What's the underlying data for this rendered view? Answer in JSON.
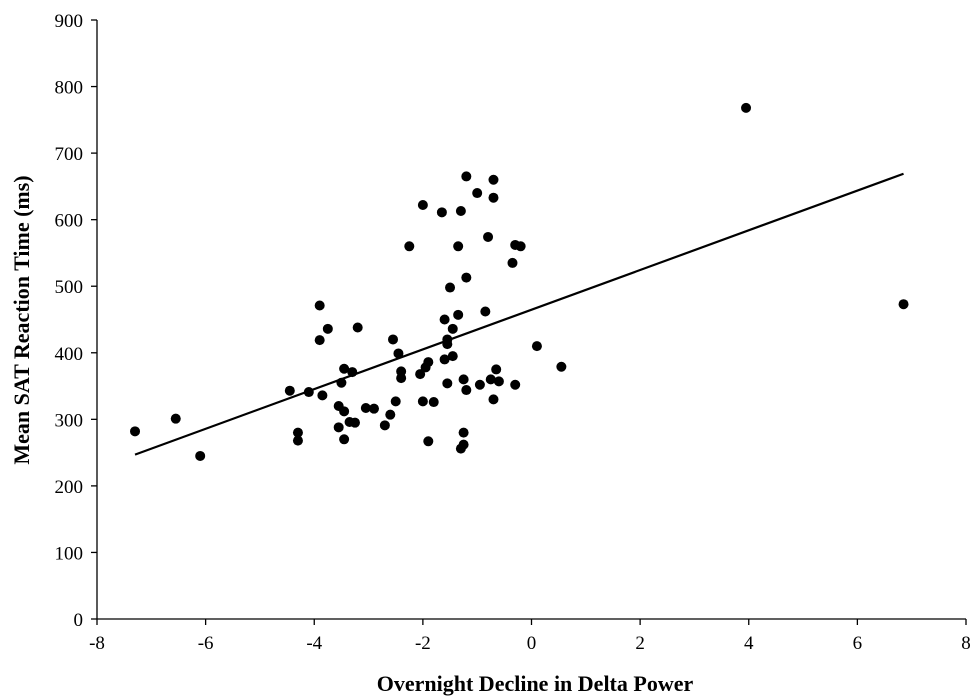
{
  "chart_data": {
    "type": "scatter",
    "title": "",
    "xlabel": "Overnight Decline in Delta Power",
    "ylabel": "Mean SAT Reaction Time (ms)",
    "xlim": [
      -8,
      8
    ],
    "ylim": [
      0,
      900
    ],
    "xticks": [
      -8,
      -6,
      -4,
      -2,
      0,
      2,
      4,
      6,
      8
    ],
    "yticks": [
      0,
      100,
      200,
      300,
      400,
      500,
      600,
      700,
      800,
      900
    ],
    "grid": false,
    "legend": "none",
    "point_color": "#000000",
    "series": [
      {
        "points": [
          {
            "x": -7.3,
            "y": 282
          },
          {
            "x": -6.55,
            "y": 301
          },
          {
            "x": -6.1,
            "y": 245
          },
          {
            "x": -4.45,
            "y": 343
          },
          {
            "x": -4.3,
            "y": 280
          },
          {
            "x": -4.3,
            "y": 268
          },
          {
            "x": -4.1,
            "y": 341
          },
          {
            "x": -3.9,
            "y": 471
          },
          {
            "x": -3.9,
            "y": 419
          },
          {
            "x": -3.85,
            "y": 336
          },
          {
            "x": -3.75,
            "y": 436
          },
          {
            "x": -3.55,
            "y": 320
          },
          {
            "x": -3.55,
            "y": 288
          },
          {
            "x": -3.5,
            "y": 355
          },
          {
            "x": -3.45,
            "y": 376
          },
          {
            "x": -3.45,
            "y": 312
          },
          {
            "x": -3.45,
            "y": 270
          },
          {
            "x": -3.35,
            "y": 296
          },
          {
            "x": -3.3,
            "y": 371
          },
          {
            "x": -3.25,
            "y": 295
          },
          {
            "x": -3.2,
            "y": 438
          },
          {
            "x": -3.05,
            "y": 317
          },
          {
            "x": -2.9,
            "y": 316
          },
          {
            "x": -2.7,
            "y": 291
          },
          {
            "x": -2.6,
            "y": 307
          },
          {
            "x": -2.55,
            "y": 420
          },
          {
            "x": -2.5,
            "y": 327
          },
          {
            "x": -2.45,
            "y": 399
          },
          {
            "x": -2.4,
            "y": 372
          },
          {
            "x": -2.4,
            "y": 362
          },
          {
            "x": -2.25,
            "y": 560
          },
          {
            "x": -2.05,
            "y": 368
          },
          {
            "x": -2.0,
            "y": 622
          },
          {
            "x": -2.0,
            "y": 327
          },
          {
            "x": -1.95,
            "y": 378
          },
          {
            "x": -1.9,
            "y": 386
          },
          {
            "x": -1.9,
            "y": 267
          },
          {
            "x": -1.8,
            "y": 326
          },
          {
            "x": -1.65,
            "y": 611
          },
          {
            "x": -1.6,
            "y": 450
          },
          {
            "x": -1.6,
            "y": 390
          },
          {
            "x": -1.55,
            "y": 420
          },
          {
            "x": -1.55,
            "y": 413
          },
          {
            "x": -1.55,
            "y": 354
          },
          {
            "x": -1.5,
            "y": 498
          },
          {
            "x": -1.45,
            "y": 436
          },
          {
            "x": -1.45,
            "y": 395
          },
          {
            "x": -1.35,
            "y": 560
          },
          {
            "x": -1.35,
            "y": 457
          },
          {
            "x": -1.3,
            "y": 613
          },
          {
            "x": -1.3,
            "y": 256
          },
          {
            "x": -1.25,
            "y": 360
          },
          {
            "x": -1.25,
            "y": 280
          },
          {
            "x": -1.25,
            "y": 262
          },
          {
            "x": -1.2,
            "y": 665
          },
          {
            "x": -1.2,
            "y": 513
          },
          {
            "x": -1.2,
            "y": 344
          },
          {
            "x": -1.0,
            "y": 640
          },
          {
            "x": -0.95,
            "y": 352
          },
          {
            "x": -0.85,
            "y": 462
          },
          {
            "x": -0.8,
            "y": 574
          },
          {
            "x": -0.75,
            "y": 360
          },
          {
            "x": -0.7,
            "y": 660
          },
          {
            "x": -0.7,
            "y": 633
          },
          {
            "x": -0.7,
            "y": 330
          },
          {
            "x": -0.65,
            "y": 375
          },
          {
            "x": -0.6,
            "y": 357
          },
          {
            "x": -0.35,
            "y": 535
          },
          {
            "x": -0.3,
            "y": 562
          },
          {
            "x": -0.3,
            "y": 352
          },
          {
            "x": -0.2,
            "y": 560
          },
          {
            "x": 0.1,
            "y": 410
          },
          {
            "x": 0.55,
            "y": 379
          },
          {
            "x": 3.95,
            "y": 768
          },
          {
            "x": 6.85,
            "y": 473
          }
        ]
      }
    ],
    "trendline": {
      "x": [
        -7.3,
        6.85
      ],
      "y": [
        247,
        669
      ]
    }
  }
}
